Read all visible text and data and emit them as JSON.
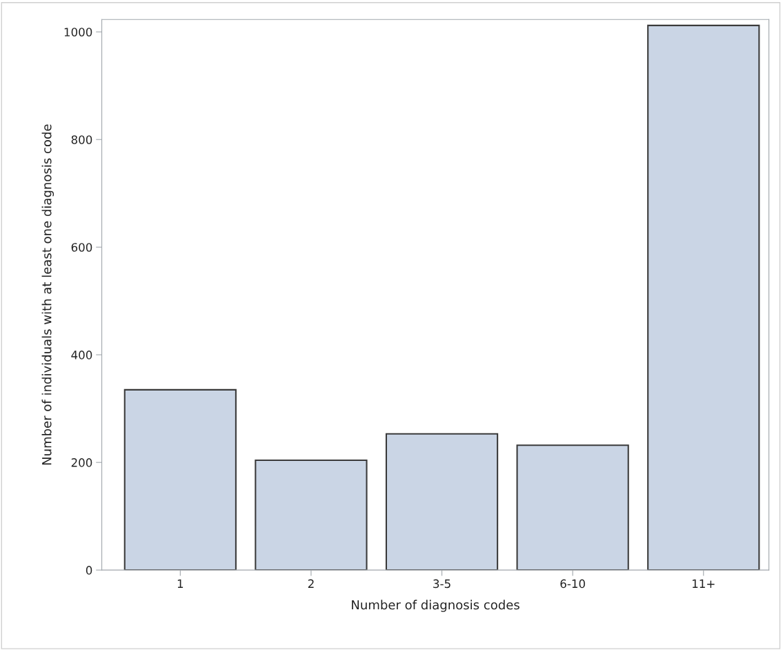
{
  "chart_data": {
    "type": "bar",
    "xlabel": "Number of diagnosis codes",
    "ylabel": "Number of individuals with at least one diagnosis code",
    "categories": [
      "1",
      "2",
      "3-5",
      "6-10",
      "11+"
    ],
    "values": [
      335,
      204,
      253,
      232,
      1012
    ],
    "color": "#cad5e5",
    "ylim": [
      0,
      1023
    ],
    "yticks": [
      0,
      200,
      400,
      600,
      800,
      1000
    ],
    "grid": false,
    "legend": false
  }
}
